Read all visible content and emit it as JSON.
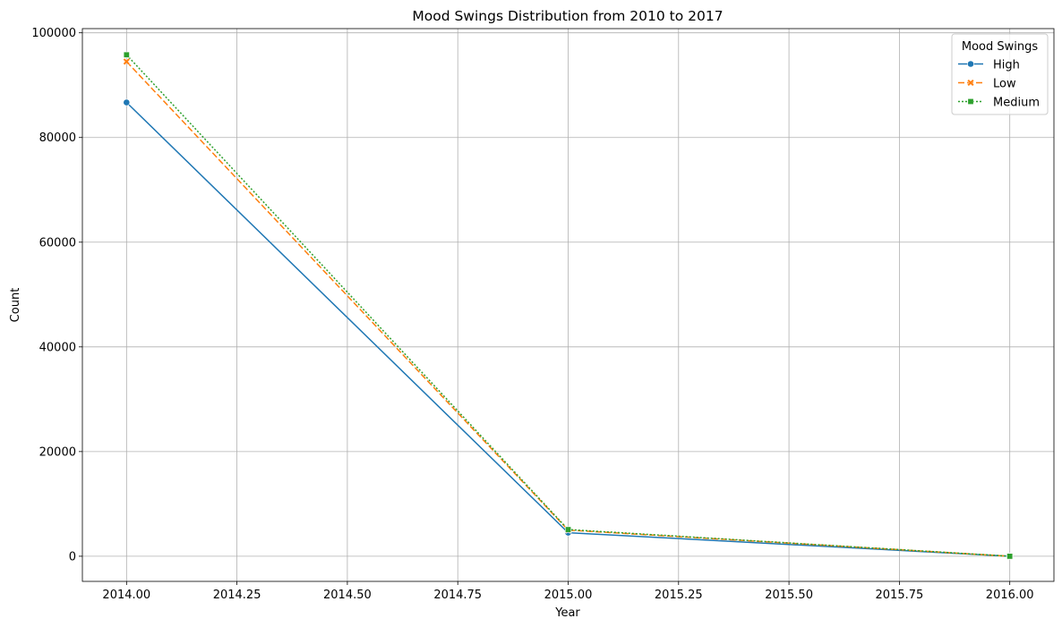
{
  "chart_data": {
    "type": "line",
    "title": "Mood Swings Distribution from 2010 to 2017",
    "xlabel": "Year",
    "ylabel": "Count",
    "x": [
      2014,
      2015,
      2016
    ],
    "xlim": [
      2013.9,
      2016.1
    ],
    "ylim": [
      -4800,
      100800
    ],
    "xticks": [
      "2014.00",
      "2014.25",
      "2014.50",
      "2014.75",
      "2015.00",
      "2015.25",
      "2015.50",
      "2015.75",
      "2016.00"
    ],
    "yticks": [
      "0",
      "20000",
      "40000",
      "60000",
      "80000",
      "100000"
    ],
    "grid": true,
    "legend": {
      "title": "Mood Swings",
      "placement": "top-right"
    },
    "series": [
      {
        "name": "High",
        "values": [
          86700,
          4500,
          0
        ],
        "color": "#1f77b4",
        "marker": "circle",
        "linestyle": "solid"
      },
      {
        "name": "Low",
        "values": [
          94500,
          5000,
          0
        ],
        "color": "#ff7f0e",
        "marker": "x",
        "linestyle": "dashed"
      },
      {
        "name": "Medium",
        "values": [
          95800,
          5100,
          0
        ],
        "color": "#2ca02c",
        "marker": "square",
        "linestyle": "dotted"
      }
    ]
  }
}
